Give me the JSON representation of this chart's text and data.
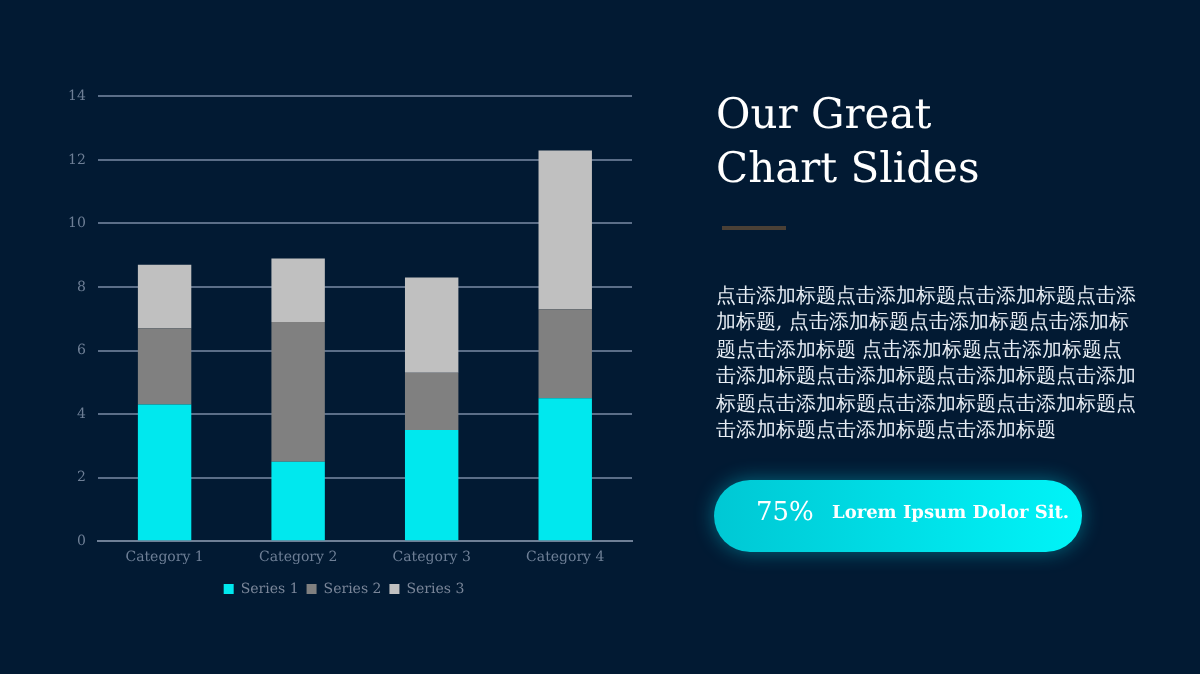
{
  "chart_data": {
    "type": "bar",
    "title": "Our Great Chart Slides",
    "stacked": true,
    "categories": [
      "Category 1",
      "Category 2",
      "Category 3",
      "Category 4"
    ],
    "series": [
      {
        "name": "Series 1",
        "color": "#00e8ee",
        "values": [
          4.3,
          2.5,
          3.5,
          4.5
        ]
      },
      {
        "name": "Series 2",
        "color": "#808080",
        "values": [
          2.4,
          4.4,
          1.8,
          2.8
        ]
      },
      {
        "name": "Series 3",
        "color": "#c0c0c0",
        "values": [
          2.0,
          2.0,
          3.0,
          5.0
        ]
      }
    ],
    "ylim": [
      0,
      14
    ],
    "yticks": [
      0,
      2,
      4,
      6,
      8,
      10,
      12,
      14
    ],
    "grid": "y",
    "legend": "bottom",
    "annotations": [
      "点击添加标题点击添加标题点击添加标题点击添加标题, 点击添加标题点击添加标题点击添加标题点击添加标题 点击添加标题点击添加标题点击添加标题点击添加标题点击添加标题点击添加标题点击添加标题点击添加标题点击添加标题点击添加标题点击添加标题点击添加标题",
      "75%",
      "Lorem Ipsum Dolor Sit."
    ]
  }
}
